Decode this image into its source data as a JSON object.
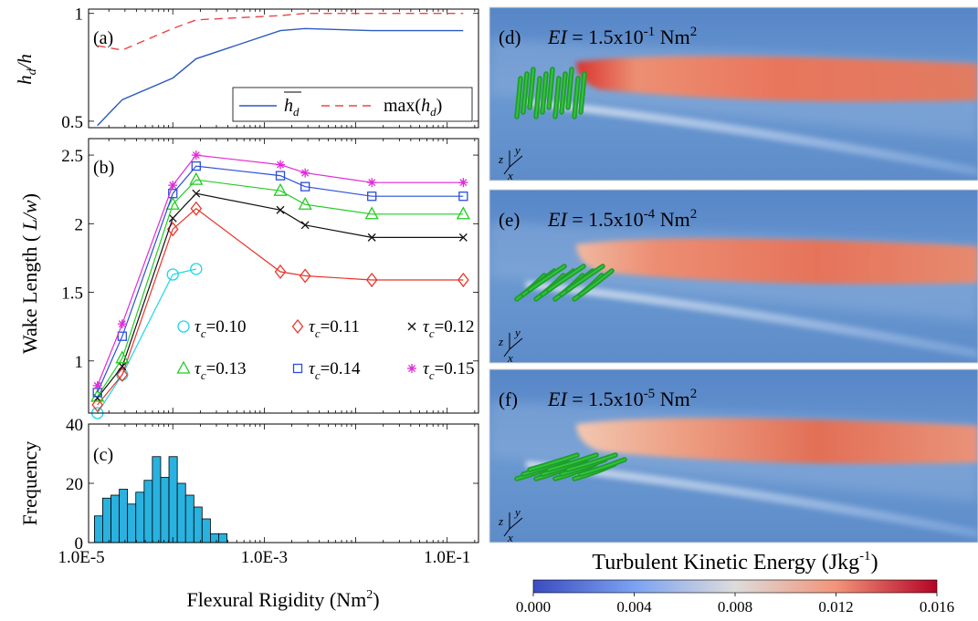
{
  "chart_data": [
    {
      "panel": "(a)",
      "type": "line",
      "xscale": "log",
      "xlim": [
        1.2e-05,
        0.22
      ],
      "ylim": [
        0.47,
        1.02
      ],
      "ylabel_base": "h",
      "ylabel_sub": "d",
      "ylabel_tail": "/h",
      "yticks": [
        {
          "v": 0.5,
          "label": "0.5"
        },
        {
          "v": 1.0,
          "label": "1"
        }
      ],
      "x": [
        1.5e-05,
        2.8e-05,
        0.0001,
        0.00018,
        0.0015,
        0.0028,
        0.015,
        0.15
      ],
      "series": [
        {
          "name_base": "h",
          "name_sub": "d",
          "color": "#2b59c3",
          "dash": "solid",
          "values": [
            0.48,
            0.6,
            0.7,
            0.79,
            0.92,
            0.93,
            0.92,
            0.92
          ]
        },
        {
          "name_base": "max(h",
          "name_sub": "d",
          "name_tail": ")",
          "color": "#e8474a",
          "dash": "dashed",
          "values": [
            0.85,
            0.83,
            0.93,
            0.97,
            0.99,
            1.0,
            1.0,
            1.0
          ]
        }
      ]
    },
    {
      "panel": "(b)",
      "type": "line",
      "xscale": "log",
      "xlim": [
        1.2e-05,
        0.22
      ],
      "ylim": [
        0.62,
        2.62
      ],
      "ylabel": "Wake Length ( L/w)",
      "yticks": [
        {
          "v": 1,
          "label": "1"
        },
        {
          "v": 1.5,
          "label": "1.5"
        },
        {
          "v": 2,
          "label": "2"
        },
        {
          "v": 2.5,
          "label": "2.5"
        }
      ],
      "series": [
        {
          "name": "=0.10",
          "color": "#1cd6e6",
          "marker": "circle",
          "x": [
            1.5e-05,
            2.8e-05,
            0.0001,
            0.00018
          ],
          "values": [
            0.62,
            0.9,
            1.63,
            1.67
          ]
        },
        {
          "name": "=0.11",
          "color": "#e8352a",
          "marker": "diamond",
          "x": [
            1.5e-05,
            2.8e-05,
            0.0001,
            0.00018,
            0.0015,
            0.0028,
            0.015,
            0.15
          ],
          "values": [
            0.68,
            0.9,
            1.96,
            2.11,
            1.65,
            1.62,
            1.59,
            1.59
          ]
        },
        {
          "name": "=0.12",
          "color": "#111111",
          "marker": "x",
          "x": [
            1.5e-05,
            2.8e-05,
            0.0001,
            0.00018,
            0.0015,
            0.0028,
            0.015,
            0.15
          ],
          "values": [
            0.73,
            0.96,
            2.04,
            2.22,
            2.1,
            1.99,
            1.9,
            1.9
          ]
        },
        {
          "name": "=0.13",
          "color": "#22cc22",
          "marker": "triangle",
          "x": [
            1.5e-05,
            2.8e-05,
            0.0001,
            0.00018,
            0.0015,
            0.0028,
            0.015,
            0.15
          ],
          "values": [
            0.74,
            1.02,
            2.14,
            2.32,
            2.24,
            2.14,
            2.07,
            2.07
          ]
        },
        {
          "name": "=0.14",
          "color": "#2b4fd8",
          "marker": "square",
          "x": [
            1.5e-05,
            2.8e-05,
            0.0001,
            0.00018,
            0.0015,
            0.0028,
            0.015,
            0.15
          ],
          "values": [
            0.77,
            1.18,
            2.22,
            2.42,
            2.35,
            2.27,
            2.2,
            2.2
          ]
        },
        {
          "name": "=0.15",
          "color": "#e02ad8",
          "marker": "star",
          "x": [
            1.5e-05,
            2.8e-05,
            0.0001,
            0.00018,
            0.0015,
            0.0028,
            0.015,
            0.15
          ],
          "values": [
            0.82,
            1.27,
            2.28,
            2.5,
            2.43,
            2.37,
            2.3,
            2.3
          ]
        }
      ]
    },
    {
      "panel": "(c)",
      "type": "bar",
      "xscale": "log",
      "xlim": [
        1.2e-05,
        0.22
      ],
      "ylim": [
        0,
        40
      ],
      "ylabel": "Frequency",
      "xlabel": "Flexural Rigidity (Nm",
      "xlabel_sup": "2",
      "xlabel_tail": ")",
      "color": "#29b2e0",
      "yticks": [
        {
          "v": 0,
          "label": "0"
        },
        {
          "v": 20,
          "label": "20"
        },
        {
          "v": 40,
          "label": "40"
        }
      ],
      "xticks": [
        {
          "v": 1e-05,
          "label": "1.0E-5"
        },
        {
          "v": 0.001,
          "label": "1.0E-3"
        },
        {
          "v": 0.1,
          "label": "1.0E-1"
        }
      ],
      "bin_edges": [
        1.39e-05,
        1.71e-05,
        2.11e-05,
        2.6e-05,
        3.2e-05,
        3.94e-05,
        4.86e-05,
        5.98e-05,
        7.37e-05,
        9.08e-05,
        0.000112,
        0.000138,
        0.00017,
        0.000209,
        0.000258,
        0.000317,
        0.000391,
        0.000482,
        0.000594,
        0.000731,
        0.000901,
        0.00111
      ],
      "values": [
        9,
        15,
        16,
        18,
        13,
        17,
        21,
        29,
        22,
        29,
        20,
        16,
        12,
        8,
        3,
        3,
        0,
        0,
        0,
        0,
        0
      ]
    }
  ],
  "legend_a": {
    "h_base": "h",
    "h_sub": "d",
    "max_base": "max(h",
    "max_sub": "d",
    "max_tail": ")"
  },
  "legend_b": {
    "tau": "τ",
    "sub": "c"
  },
  "panels_right": [
    {
      "label": "(d)",
      "ei_prefix": "EI",
      "ei_mid": " = 1.5x10",
      "ei_exp": "-1",
      "ei_unit": " Nm",
      "ei_unit_sup": "2"
    },
    {
      "label": "(e)",
      "ei_prefix": "EI",
      "ei_mid": " = 1.5x10",
      "ei_exp": "-4",
      "ei_unit": " Nm",
      "ei_unit_sup": "2"
    },
    {
      "label": "(f)",
      "ei_prefix": "EI",
      "ei_mid": " = 1.5x10",
      "ei_exp": "-5",
      "ei_unit": " Nm",
      "ei_unit_sup": "2"
    }
  ],
  "axes_triad": {
    "z": "z",
    "y": "y",
    "x": "x"
  },
  "colorbar": {
    "title": "Turbulent Kinetic Energy (Jkg",
    "title_sup": "-1",
    "title_tail": ")",
    "ticks": [
      {
        "v": 0.0,
        "label": "0.000"
      },
      {
        "v": 0.004,
        "label": "0.004"
      },
      {
        "v": 0.008,
        "label": "0.008"
      },
      {
        "v": 0.012,
        "label": "0.012"
      },
      {
        "v": 0.016,
        "label": "0.016"
      }
    ],
    "range": [
      0,
      0.016
    ],
    "colors": [
      "#3b4cc0",
      "#dddcdb",
      "#b40426"
    ]
  }
}
